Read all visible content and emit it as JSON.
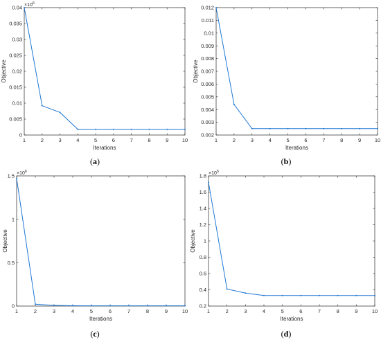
{
  "chart_data": [
    {
      "type": "line",
      "panel": "a",
      "caption_letter": "a",
      "xlabel": "Iterations",
      "ylabel": "Objective",
      "multiplier": "6",
      "x": [
        1,
        2,
        3,
        4,
        5,
        6,
        7,
        8,
        9,
        10
      ],
      "series": [
        {
          "values": [
            0.04,
            0.0092,
            0.0071,
            0.0018,
            0.0018,
            0.0018,
            0.0018,
            0.0018,
            0.0018,
            0.0018
          ]
        }
      ],
      "xlim": [
        1,
        10
      ],
      "ylim": [
        0,
        0.04
      ],
      "yticks": [
        0,
        0.005,
        0.01,
        0.015,
        0.02,
        0.025,
        0.03,
        0.035,
        0.04
      ],
      "ytick_labels": [
        "0",
        "0.005",
        "0.01",
        "0.015",
        "0.02",
        "0.025",
        "0.03",
        "0.035",
        "0.04"
      ],
      "xtick_labels": [
        "1",
        "2",
        "3",
        "4",
        "5",
        "6",
        "7",
        "8",
        "9",
        "10"
      ]
    },
    {
      "type": "line",
      "panel": "b",
      "caption_letter": "b",
      "xlabel": "Iterations",
      "ylabel": "Objective",
      "multiplier": "",
      "x": [
        1,
        2,
        3,
        4,
        5,
        6,
        7,
        8,
        9,
        10
      ],
      "series": [
        {
          "values": [
            0.012,
            0.0044,
            0.0025,
            0.0025,
            0.0025,
            0.0025,
            0.0025,
            0.0025,
            0.0025,
            0.0025
          ]
        }
      ],
      "xlim": [
        1,
        10
      ],
      "ylim": [
        0.002,
        0.012
      ],
      "yticks": [
        0.002,
        0.003,
        0.004,
        0.005,
        0.006,
        0.007,
        0.008,
        0.009,
        0.01,
        0.011,
        0.012
      ],
      "ytick_labels": [
        "0.002",
        "0.003",
        "0.004",
        "0.005",
        "0.006",
        "0.007",
        "0.008",
        "0.009",
        "0.01",
        "0.011",
        "0.012"
      ],
      "xtick_labels": [
        "1",
        "2",
        "3",
        "4",
        "5",
        "6",
        "7",
        "8",
        "9",
        "10"
      ]
    },
    {
      "type": "line",
      "panel": "c",
      "caption_letter": "c",
      "xlabel": "Iterations",
      "ylabel": "Objective",
      "multiplier": "6",
      "x": [
        1,
        2,
        3,
        4,
        5,
        6,
        7,
        8,
        9,
        10
      ],
      "series": [
        {
          "values": [
            1.47,
            0.022,
            0.008,
            0.004,
            0.003,
            0.003,
            0.003,
            0.003,
            0.003,
            0.003
          ]
        }
      ],
      "xlim": [
        1,
        10
      ],
      "ylim": [
        0,
        1.5
      ],
      "yticks": [
        0,
        0.5,
        1,
        1.5
      ],
      "ytick_labels": [
        "0",
        "0.5",
        "1",
        "1.5"
      ],
      "xtick_labels": [
        "1",
        "2",
        "3",
        "4",
        "5",
        "6",
        "7",
        "8",
        "9",
        "10"
      ]
    },
    {
      "type": "line",
      "panel": "d",
      "caption_letter": "d",
      "xlabel": "Iterations",
      "ylabel": "Objective",
      "multiplier": "5",
      "x": [
        1,
        2,
        3,
        4,
        5,
        6,
        7,
        8,
        9,
        10
      ],
      "series": [
        {
          "values": [
            1.72,
            0.41,
            0.36,
            0.33,
            0.33,
            0.33,
            0.33,
            0.33,
            0.33,
            0.33
          ]
        }
      ],
      "xlim": [
        1,
        10
      ],
      "ylim": [
        0.2,
        1.8
      ],
      "yticks": [
        0.2,
        0.4,
        0.6,
        0.8,
        1,
        1.2,
        1.4,
        1.6,
        1.8
      ],
      "ytick_labels": [
        "0.2",
        "0.4",
        "0.6",
        "0.8",
        "1",
        "1.2",
        "1.4",
        "1.6",
        "1.8"
      ],
      "xtick_labels": [
        "1",
        "2",
        "3",
        "4",
        "5",
        "6",
        "7",
        "8",
        "9",
        "10"
      ]
    }
  ]
}
